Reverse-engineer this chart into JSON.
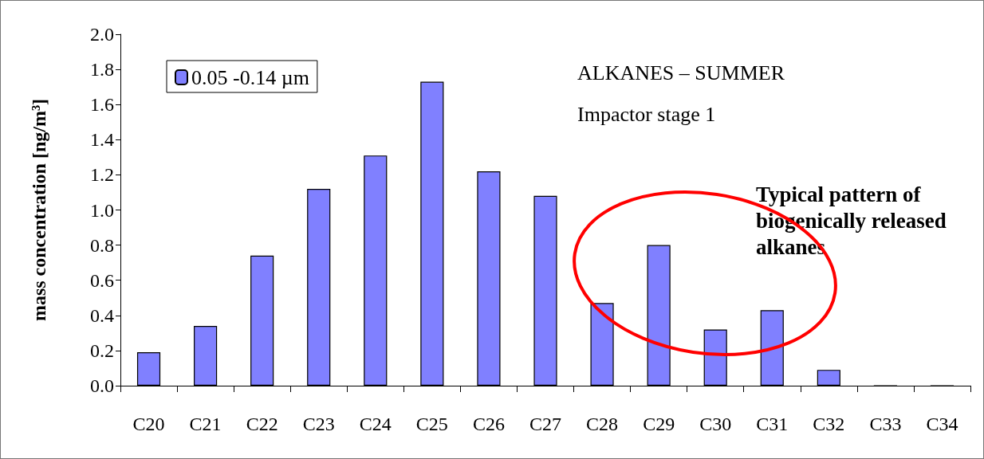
{
  "chart_data": {
    "type": "bar",
    "title": "ALKANES – SUMMER",
    "subtitle": "Impactor stage 1",
    "ylabel": "mass concentration [ng/m³]",
    "annotations": [
      "Typical pattern of biogenically released alkanes"
    ],
    "categories": [
      "C20",
      "C21",
      "C22",
      "C23",
      "C24",
      "C25",
      "C26",
      "C27",
      "C28",
      "C29",
      "C30",
      "C31",
      "C32",
      "C33",
      "C34"
    ],
    "series": [
      {
        "name": "0.05 -0.14 µm",
        "color": "#8080ff",
        "values": [
          0.19,
          0.34,
          0.74,
          1.12,
          1.31,
          1.73,
          1.22,
          1.08,
          0.47,
          0.8,
          0.32,
          0.43,
          0.09,
          0,
          0
        ]
      }
    ],
    "ylim": [
      0,
      2
    ],
    "yticks": [
      {
        "value": 0,
        "label": "0.0"
      },
      {
        "value": 0.2,
        "label": "0.2"
      },
      {
        "value": 0.4,
        "label": "0.4"
      },
      {
        "value": 0.6,
        "label": "0.6"
      },
      {
        "value": 0.8,
        "label": "0.8"
      },
      {
        "value": 1,
        "label": "1.0"
      },
      {
        "value": 1.2,
        "label": "1.2"
      },
      {
        "value": 1.4,
        "label": "1.4"
      },
      {
        "value": 1.6,
        "label": "1.6"
      },
      {
        "value": 1.8,
        "label": "1.8"
      },
      {
        "value": 2,
        "label": "2.0"
      }
    ],
    "grid": false,
    "legend": "top left"
  }
}
